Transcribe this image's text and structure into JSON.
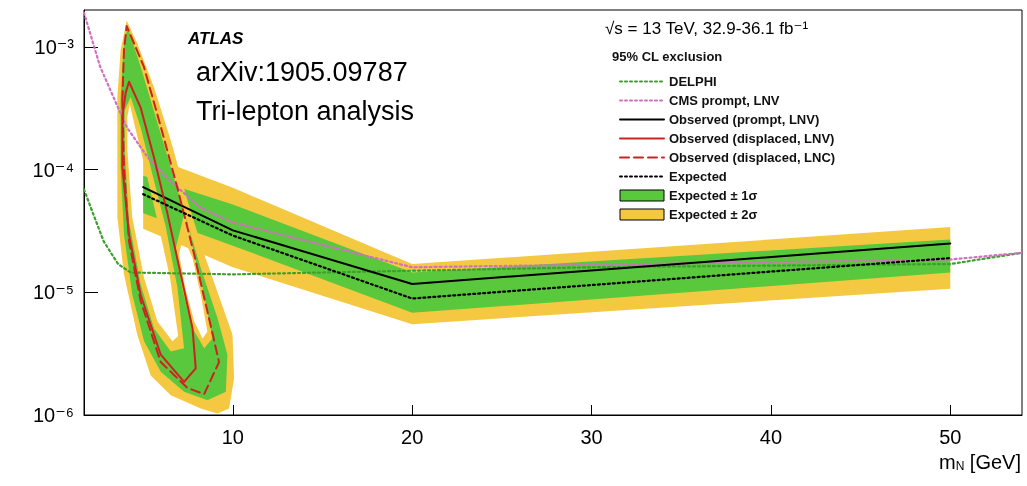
{
  "chart_data": {
    "type": "line",
    "xlabel": "m$_{N}$ [GeV]",
    "legend_title": "95% CL exclusion",
    "annotations": [
      "ATLAS",
      "arXiv:1905.09787",
      "Tri-lepton analysis",
      "√s = 13 TeV, 32.9-36.1 fb⁻¹"
    ],
    "xlim": [
      1.7,
      54
    ],
    "xticks": [
      10,
      20,
      30,
      40,
      50
    ],
    "ylim": [
      1e-06,
      0.002
    ],
    "yticks": [
      {
        "value": 1e-06,
        "label": "10⁻⁶"
      },
      {
        "value": 1e-05,
        "label": "10⁻⁵"
      },
      {
        "value": 0.0001,
        "label": "10⁻⁴"
      },
      {
        "value": 0.001,
        "label": "10⁻³"
      }
    ],
    "log": "y",
    "legend": "top right",
    "marker": "none",
    "series": [
      {
        "name": "Expected ± 2σ",
        "type": "area",
        "color": "#f5c842",
        "x": [
          5,
          10,
          20,
          50,
          50,
          20,
          10,
          5
        ],
        "values": [
          0.000135,
          7.1e-05,
          1.7e-05,
          3.4e-05,
          1.07e-05,
          5.5e-06,
          1.6e-05,
          3.3e-05
        ]
      },
      {
        "name": "Expected ± 1σ",
        "type": "area",
        "color": "#5ac83c",
        "x": [
          5,
          10,
          20,
          50,
          50,
          20,
          10,
          5
        ],
        "values": [
          8.9e-05,
          5.2e-05,
          1.45e-05,
          2.7e-05,
          1.45e-05,
          6.8e-06,
          2.4e-05,
          4.4e-05
        ]
      },
      {
        "type": "area",
        "color": "#f5c842",
        "x": [
          4.08,
          4.67,
          5.6,
          6.54,
          7.47,
          8.4,
          9.33,
          9.98,
          10.07,
          9.79,
          9.14,
          8.21,
          6.54,
          5.42,
          4.67,
          3.93,
          3.56,
          3.56,
          3.56,
          3.74,
          null,
          4.12,
          4.12,
          4.39,
          5.05,
          5.79,
          6.63,
          6.95,
          6.5,
          5.75,
          5.1,
          4.55,
          4.25,
          null,
          7.19,
          7.0,
          7.37,
          7.84,
          8.31,
          8.58,
          8.21,
          7.75,
          7.45
        ],
        "values": [
          0.00164,
          0.00107,
          0.00047,
          0.000173,
          5.6e-05,
          2.04e-05,
          8.4e-06,
          4.5e-06,
          1.99e-06,
          1.13e-06,
          1.03e-06,
          1.13e-06,
          1.45e-06,
          2.1e-06,
          4.5e-06,
          1.4e-05,
          4.1e-05,
          0.000143,
          0.00039,
          0.00094,
          null,
          0.00027,
          0.000143,
          4.1e-05,
          1.31e-05,
          5.8e-06,
          4e-06,
          4.4e-06,
          1.31e-05,
          4.1e-05,
          0.000104,
          0.00022,
          0.000345,
          null,
          2.7e-05,
          2.04e-05,
          1.05e-05,
          5.8e-06,
          4.2e-06,
          4.8e-06,
          9.6e-06,
          1.9e-05,
          2.4e-05
        ]
      },
      {
        "type": "area",
        "color": "#5ac83c",
        "x": [
          4.12,
          4.86,
          5.98,
          7.09,
          8.21,
          9.14,
          9.7,
          9.61,
          8.58,
          7.28,
          5.98,
          5.05,
          4.39,
          3.93,
          3.74,
          3.74,
          3.89,
          null,
          3.97,
          3.97,
          4.21,
          4.86,
          5.6,
          6.54,
          7.28,
          6.91,
          6.26,
          5.51,
          4.86,
          4.3,
          null,
          7.28,
          6.82,
          7.19,
          7.75,
          8.4,
          8.86,
          8.4,
          7.84,
          7.47
        ],
        "values": [
          0.00147,
          0.00069,
          0.000196,
          5.6e-05,
          1.58e-05,
          6.2e-06,
          3.1e-06,
          1.55e-06,
          1.32e-06,
          1.55e-06,
          2.25e-06,
          4e-06,
          9.6e-06,
          2.97e-05,
          0.000104,
          0.00037,
          0.00094,
          null,
          0.000305,
          0.000143,
          3.8e-05,
          1.16e-05,
          5.1e-06,
          3.3e-06,
          3.5e-06,
          1.09e-05,
          3.4e-05,
          9.2e-05,
          0.00022,
          0.00039,
          null,
          4.3e-05,
          2.3e-05,
          1.05e-05,
          5.1e-06,
          3.5e-06,
          4.2e-06,
          9.6e-06,
          2.04e-05,
          3.8e-05
        ]
      },
      {
        "name": "DELPHI",
        "type": "line",
        "color": "#3ca02c",
        "line_style": "dotted",
        "x": [
          1.7,
          2.2,
          2.8,
          3.6,
          4.3,
          10,
          15,
          20,
          30,
          40,
          50,
          54
        ],
        "values": [
          6.9e-05,
          4.4e-05,
          2.6e-05,
          1.7e-05,
          1.45e-05,
          1.4e-05,
          1.45e-05,
          1.5e-05,
          1.6e-05,
          1.65e-05,
          1.7e-05,
          2.1e-05
        ]
      },
      {
        "name": "CMS prompt, LNV",
        "type": "line",
        "color": "#d070c0",
        "line_style": "dotted",
        "x": [
          1.7,
          2.6,
          3.6,
          4.1,
          5.25,
          6.5,
          8.2,
          10,
          20,
          50,
          54
        ],
        "values": [
          0.0019,
          0.00069,
          0.00032,
          0.00022,
          0.000126,
          8.1e-05,
          4.9e-05,
          3.7e-05,
          1.6e-05,
          1.85e-05,
          2.1e-05
        ]
      },
      {
        "name": "Observed (prompt, LNV)",
        "type": "line",
        "color": "#000000",
        "line_style": "solid",
        "x": [
          5,
          10,
          20,
          50
        ],
        "values": [
          7.2e-05,
          3.2e-05,
          1.17e-05,
          2.5e-05
        ]
      },
      {
        "name": "Observed (displaced, LNV)",
        "type": "line",
        "color": "#cc2222",
        "line_style": "solid",
        "x": [
          3.84,
          3.84,
          4.02,
          4.21,
          4.86,
          5.6,
          6.35,
          7.09,
          7.75,
          7.93,
          null,
          3.84,
          4.21,
          4.86,
          5.98,
          7.28,
          7.93
        ],
        "values": [
          0.000105,
          0.00027,
          0.00042,
          0.00052,
          0.00032,
          0.000126,
          4.4e-05,
          1.41e-05,
          5.1e-06,
          2.4e-06,
          null,
          0.000105,
          2.95e-05,
          9.5e-06,
          3.1e-06,
          1.86e-06,
          2.4e-06
        ]
      },
      {
        "name": "Observed (displaced, LNC)",
        "type": "line",
        "color": "#cc2222",
        "line_style": "dashed",
        "x": [
          3.84,
          3.93,
          4.08,
          5.04,
          5.98,
          6.91,
          7.84,
          8.59,
          9.23,
          null,
          3.84,
          3.93,
          4.21,
          4.86,
          5.98,
          7.47,
          8.4,
          9.23
        ],
        "values": [
          0.00037,
          0.00095,
          0.00148,
          0.00069,
          0.000224,
          7.1e-05,
          2.04e-05,
          6.9e-06,
          2.7e-06,
          null,
          0.00037,
          0.000105,
          2.6e-05,
          8.5e-06,
          2.7e-06,
          1.66e-06,
          1.48e-06,
          2.7e-06
        ]
      },
      {
        "name": "Expected",
        "type": "line",
        "color": "#000000",
        "line_style": "dotted",
        "x": [
          5,
          10,
          20,
          50
        ],
        "values": [
          6.3e-05,
          2.9e-05,
          8.9e-06,
          1.9e-05
        ]
      }
    ]
  }
}
